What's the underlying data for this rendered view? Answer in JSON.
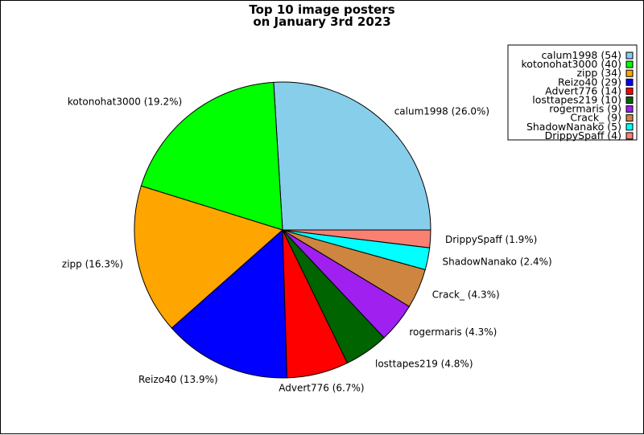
{
  "chart_data": {
    "type": "pie",
    "title_lines": [
      "Top 10 image posters",
      "on January 3rd 2023"
    ],
    "legend_position": "top-right",
    "slices": [
      {
        "name": "calum1998",
        "count": 54,
        "percent": 26.0,
        "color": "#87ceeb",
        "legend": "calum1998 (54)",
        "label": "calum1998 (26.0%)"
      },
      {
        "name": "kotonohat3000",
        "count": 40,
        "percent": 19.2,
        "color": "#00ff00",
        "legend": "kotonohat3000 (40)",
        "label": "kotonohat3000 (19.2%)"
      },
      {
        "name": "zipp",
        "count": 34,
        "percent": 16.3,
        "color": "#ffa500",
        "legend": "zipp (34)",
        "label": "zipp (16.3%)"
      },
      {
        "name": "Reizo40",
        "count": 29,
        "percent": 13.9,
        "color": "#0000ff",
        "legend": "Reizo40 (29)",
        "label": "Reizo40 (13.9%)"
      },
      {
        "name": "Advert776",
        "count": 14,
        "percent": 6.7,
        "color": "#ff0000",
        "legend": "Advert776 (14)",
        "label": "Advert776 (6.7%)"
      },
      {
        "name": "losttapes219",
        "count": 10,
        "percent": 4.8,
        "color": "#006400",
        "legend": "losttapes219 (10)",
        "label": "losttapes219 (4.8%)"
      },
      {
        "name": "rogermaris",
        "count": 9,
        "percent": 4.3,
        "color": "#a020f0",
        "legend": "rogermaris (9)",
        "label": "rogermaris (4.3%)"
      },
      {
        "name": "Crack_",
        "count": 9,
        "percent": 4.3,
        "color": "#cd853f",
        "legend": "Crack_ (9)",
        "label": "Crack_ (4.3%)"
      },
      {
        "name": "ShadowNanako",
        "count": 5,
        "percent": 2.4,
        "color": "#00ffff",
        "legend": "ShadowNanako (5)",
        "label": "ShadowNanako (2.4%)"
      },
      {
        "name": "DrippySpaff",
        "count": 4,
        "percent": 1.9,
        "color": "#fa8072",
        "legend": "DrippySpaff (4)",
        "label": "DrippySpaff (1.9%)"
      }
    ]
  }
}
